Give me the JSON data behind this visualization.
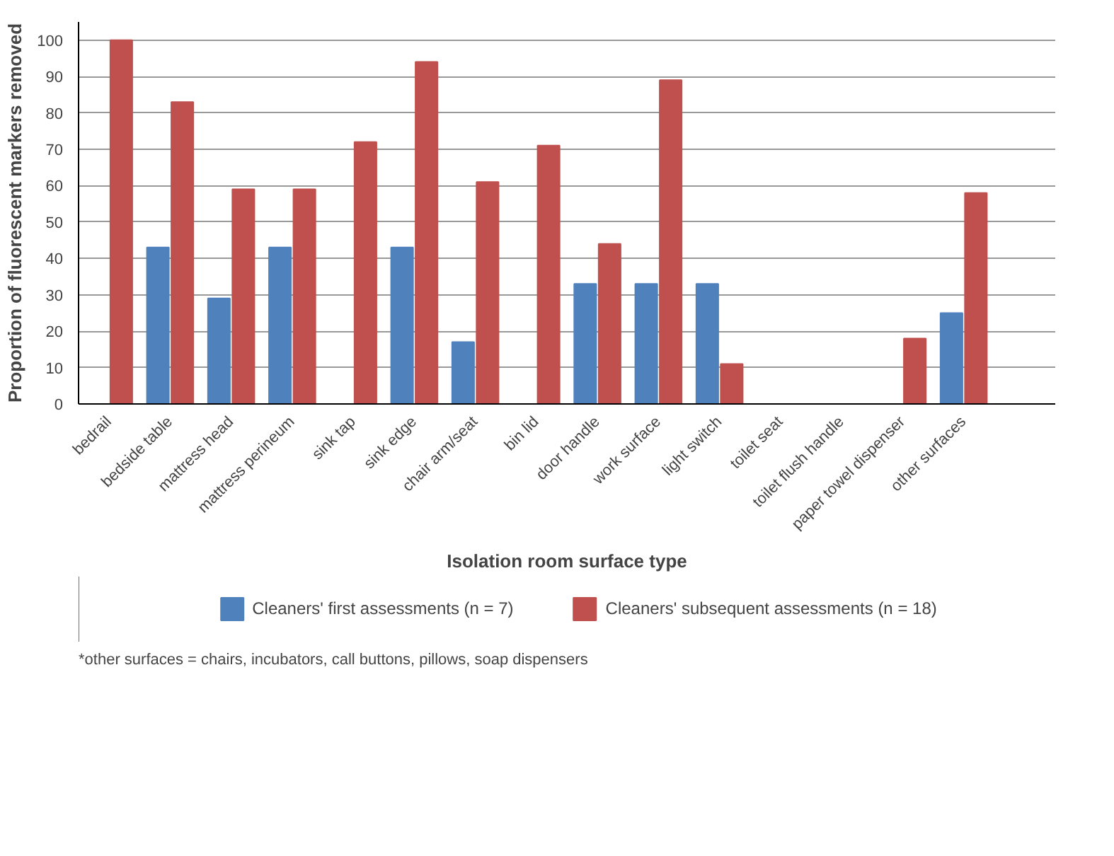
{
  "chart_data": {
    "type": "bar",
    "xlabel": "Isolation room surface type",
    "ylabel": "Proportion of fluorescent markers removed",
    "categories": [
      "bedrail",
      "bedside table",
      "mattress head",
      "mattress perineum",
      "sink tap",
      "sink edge",
      "chair arm/seat",
      "bin lid",
      "door handle",
      "work surface",
      "light switch",
      "toilet seat",
      "toilet flush handle",
      "paper towel dispenser",
      "other surfaces",
      null
    ],
    "series": [
      {
        "name": "Cleaners' first assessments (n = 7)",
        "color": "#4f81bd",
        "values": [
          0,
          43,
          29,
          43,
          0,
          43,
          17,
          0,
          33,
          33,
          33,
          0,
          0,
          0,
          25,
          null
        ]
      },
      {
        "name": "Cleaners' subsequent assessments (n = 18)",
        "color": "#c0504d",
        "values": [
          100,
          83,
          59,
          59,
          72,
          94,
          61,
          71,
          44,
          89,
          11,
          0,
          0,
          18,
          58,
          null
        ]
      }
    ],
    "ylim": [
      0,
      105
    ],
    "yticks": [
      0,
      10,
      20,
      30,
      40,
      50,
      60,
      70,
      80,
      90,
      100
    ],
    "grid": "y",
    "legend": "bottom",
    "annotations": [
      "*other surfaces = chairs, incubators, call buttons, pillows, soap dispensers"
    ]
  }
}
